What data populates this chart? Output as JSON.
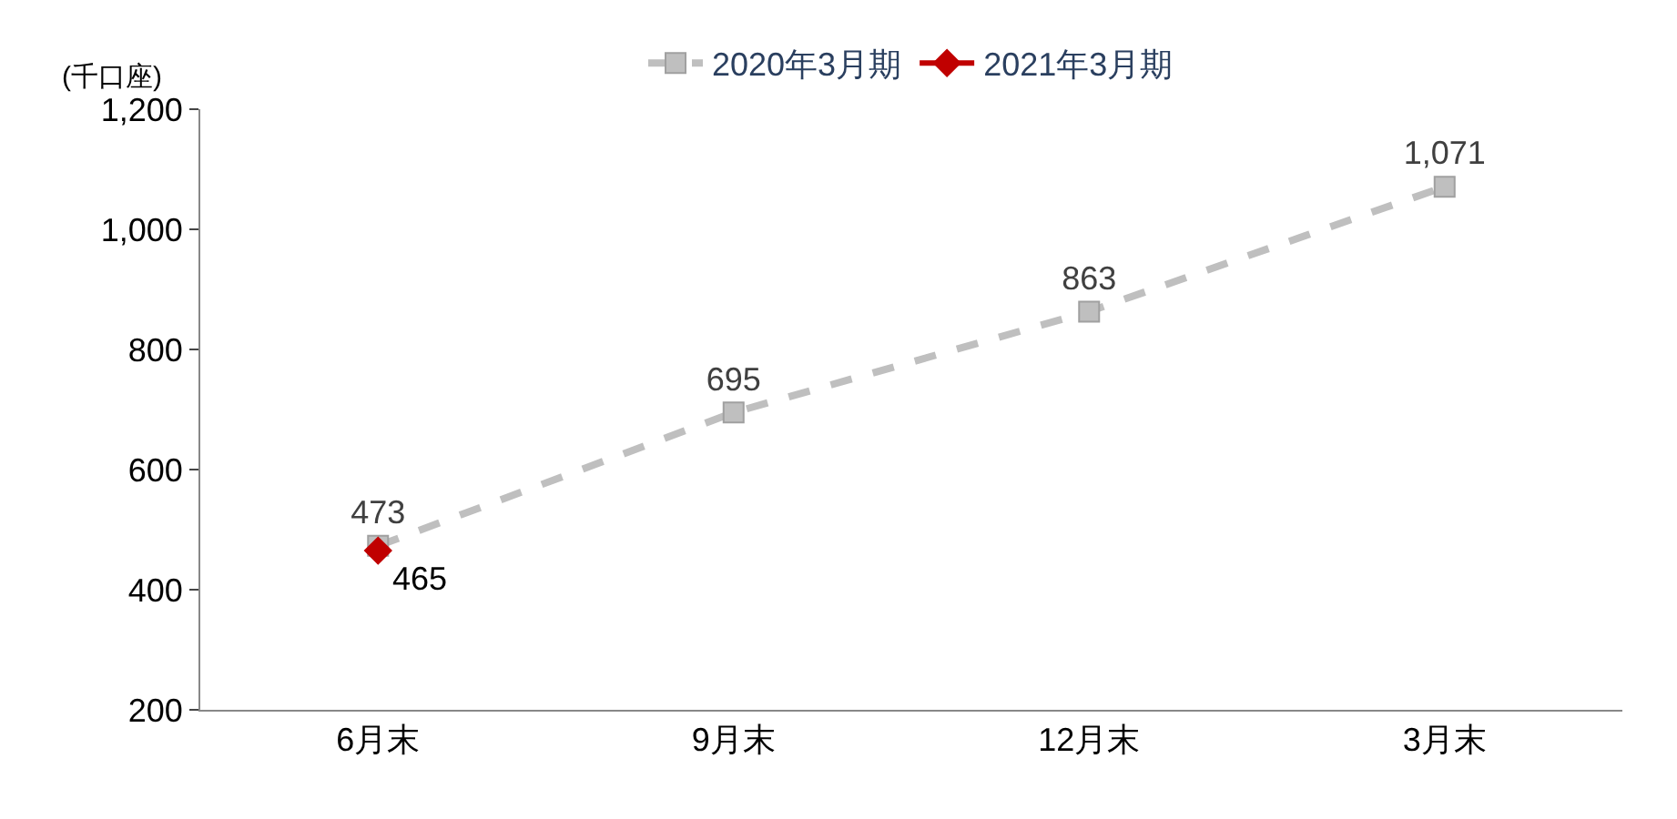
{
  "chart_data": {
    "type": "line",
    "ylabel": "(千口座)",
    "categories": [
      "6月末",
      "9月末",
      "12月末",
      "3月末"
    ],
    "series": [
      {
        "name": "2020年3月期",
        "color": "#bfbfbf",
        "values": [
          473,
          695,
          863,
          1071
        ],
        "value_labels": [
          "473",
          "695",
          "863",
          "1,071"
        ],
        "marker": "square",
        "line_style": "dashed"
      },
      {
        "name": "2021年3月期",
        "color": "#c00000",
        "values": [
          465,
          null,
          null,
          null
        ],
        "value_labels": [
          "465",
          null,
          null,
          null
        ],
        "marker": "diamond",
        "line_style": "solid"
      }
    ],
    "ylim": [
      200,
      1200
    ],
    "yticks": [
      200,
      400,
      600,
      800,
      {
        "value": 1000,
        "label": "1,000"
      },
      {
        "value": 1200,
        "label": "1,200"
      }
    ],
    "legend": "top"
  }
}
